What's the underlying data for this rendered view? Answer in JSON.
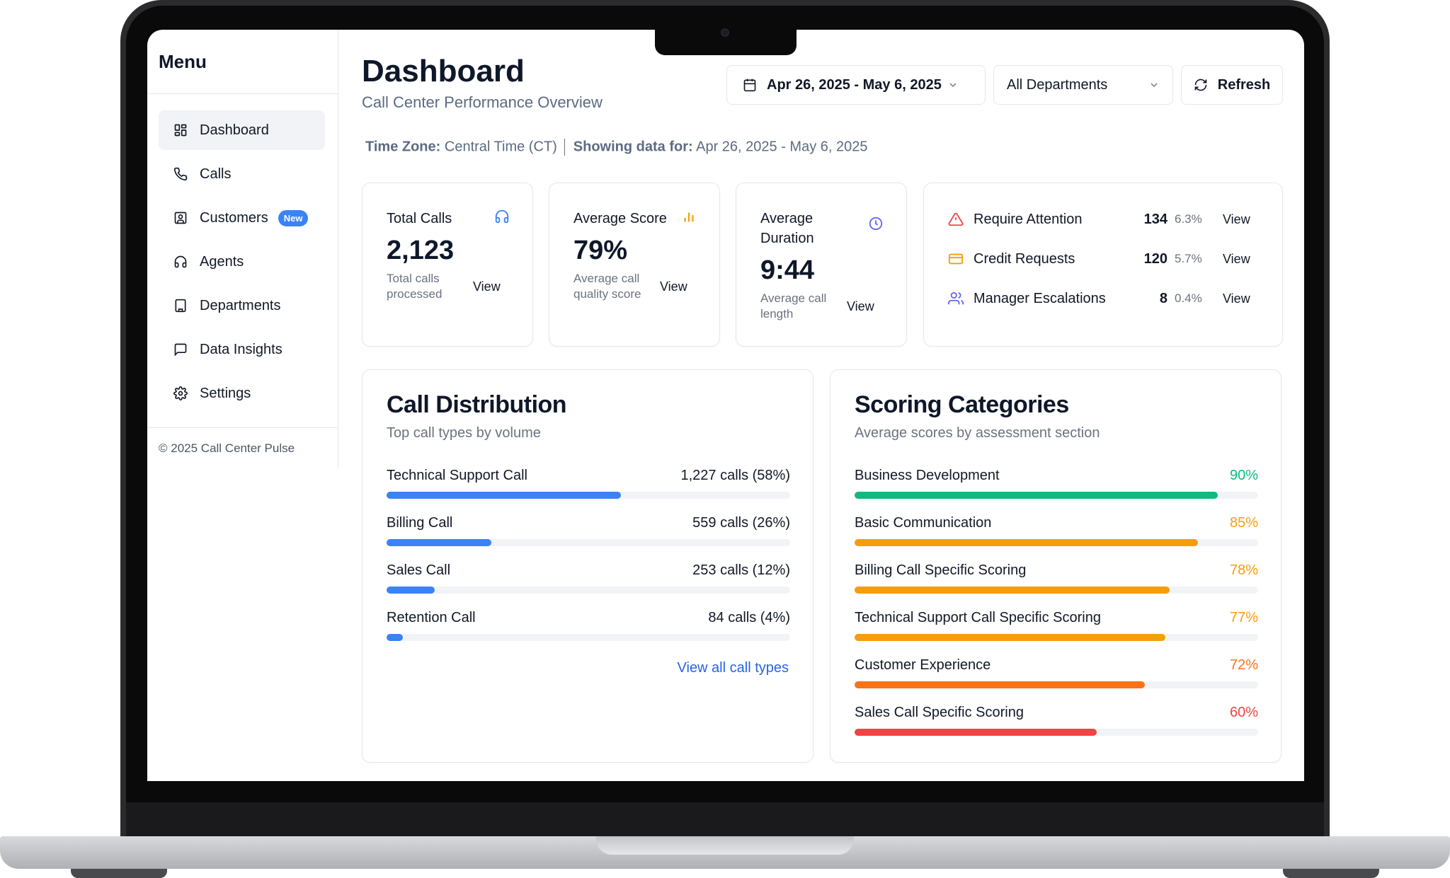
{
  "sidebar": {
    "title": "Menu",
    "items": [
      {
        "label": "Dashboard",
        "icon": "grid-icon",
        "active": true
      },
      {
        "label": "Calls",
        "icon": "phone-icon"
      },
      {
        "label": "Customers",
        "icon": "contact-icon",
        "badge": "New"
      },
      {
        "label": "Agents",
        "icon": "headset-icon"
      },
      {
        "label": "Departments",
        "icon": "building-icon"
      },
      {
        "label": "Data Insights",
        "icon": "message-square-icon"
      },
      {
        "label": "Settings",
        "icon": "gear-icon"
      }
    ],
    "footer": "© 2025 Call Center Pulse"
  },
  "header": {
    "title": "Dashboard",
    "subtitle": "Call Center Performance Overview",
    "date_range": "Apr 26, 2025 - May 6, 2025",
    "department": "All Departments",
    "refresh_label": "Refresh"
  },
  "info": {
    "timezone_label": "Time Zone:",
    "timezone_value": "Central Time (CT)",
    "showing_label": "Showing data for:",
    "showing_value": "Apr 26, 2025 - May 6, 2025"
  },
  "kpis": [
    {
      "title": "Total Calls",
      "value": "2,123",
      "desc": "Total calls processed",
      "view": "View",
      "icon": "headset-icon",
      "icon_color": "#3b82f6"
    },
    {
      "title": "Average Score",
      "value": "79%",
      "desc": "Average call quality score",
      "view": "View",
      "icon": "bar-chart-icon",
      "icon_color": "#f59e0b"
    },
    {
      "title": "Average Duration",
      "value": "9:44",
      "desc": "Average call length",
      "view": "View",
      "icon": "clock-icon",
      "icon_color": "#6366f1"
    }
  ],
  "attention": [
    {
      "label": "Require Attention",
      "count": "134",
      "pct": "6.3%",
      "view": "View",
      "icon": "warning-icon",
      "icon_color": "#ef4444"
    },
    {
      "label": "Credit Requests",
      "count": "120",
      "pct": "5.7%",
      "view": "View",
      "icon": "credit-card-icon",
      "icon_color": "#f59e0b"
    },
    {
      "label": "Manager Escalations",
      "count": "8",
      "pct": "0.4%",
      "view": "View",
      "icon": "users-icon",
      "icon_color": "#6366f1"
    }
  ],
  "call_distribution": {
    "title": "Call Distribution",
    "subtitle": "Top call types by volume",
    "items": [
      {
        "label": "Technical Support Call",
        "value": "1,227 calls (58%)",
        "pct": 58
      },
      {
        "label": "Billing Call",
        "value": "559 calls (26%)",
        "pct": 26
      },
      {
        "label": "Sales Call",
        "value": "253 calls (12%)",
        "pct": 12
      },
      {
        "label": "Retention Call",
        "value": "84 calls (4%)",
        "pct": 4
      }
    ],
    "bar_color": "#3b82f6",
    "view_all": "View all call types"
  },
  "scoring": {
    "title": "Scoring Categories",
    "subtitle": "Average scores by assessment section",
    "items": [
      {
        "label": "Business Development",
        "value": "90%",
        "pct": 90,
        "color": "#10b981"
      },
      {
        "label": "Basic Communication",
        "value": "85%",
        "pct": 85,
        "color": "#f59e0b"
      },
      {
        "label": "Billing Call Specific Scoring",
        "value": "78%",
        "pct": 78,
        "color": "#f59e0b"
      },
      {
        "label": "Technical Support Call Specific Scoring",
        "value": "77%",
        "pct": 77,
        "color": "#f59e0b"
      },
      {
        "label": "Customer Experience",
        "value": "72%",
        "pct": 72,
        "color": "#f97316"
      },
      {
        "label": "Sales Call Specific Scoring",
        "value": "60%",
        "pct": 60,
        "color": "#ef4444"
      }
    ]
  }
}
